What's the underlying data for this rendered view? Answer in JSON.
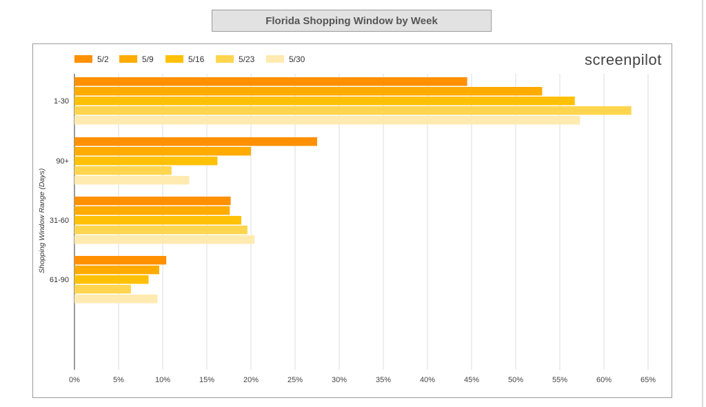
{
  "chart_data": {
    "type": "bar",
    "orientation": "horizontal",
    "title": "Florida Shopping Window by Week",
    "ylabel": "Shopping Window Range (Days)",
    "xlabel": "",
    "categories": [
      "1-30",
      "90+",
      "31-60",
      "61-90"
    ],
    "series": [
      {
        "name": "5/2",
        "color": "#ff9000",
        "values": [
          44.5,
          27.5,
          17.7,
          10.4
        ]
      },
      {
        "name": "5/9",
        "color": "#ffab00",
        "values": [
          53.0,
          20.0,
          17.6,
          9.6
        ]
      },
      {
        "name": "5/16",
        "color": "#ffc107",
        "values": [
          56.7,
          16.2,
          18.9,
          8.4
        ]
      },
      {
        "name": "5/23",
        "color": "#ffd54f",
        "values": [
          63.1,
          11.0,
          19.6,
          6.4
        ]
      },
      {
        "name": "5/30",
        "color": "#ffeab0",
        "values": [
          57.3,
          13.0,
          20.4,
          9.4
        ]
      }
    ],
    "xlim": [
      0,
      65
    ],
    "xticks": [
      "0%",
      "5%",
      "10%",
      "15%",
      "20%",
      "25%",
      "30%",
      "35%",
      "40%",
      "45%",
      "50%",
      "55%",
      "60%",
      "65%"
    ],
    "xtick_values": [
      0,
      5,
      10,
      15,
      20,
      25,
      30,
      35,
      40,
      45,
      50,
      55,
      60,
      65
    ],
    "grid": "vertical",
    "legend": "top-left"
  },
  "logo_text": "screenpilot"
}
